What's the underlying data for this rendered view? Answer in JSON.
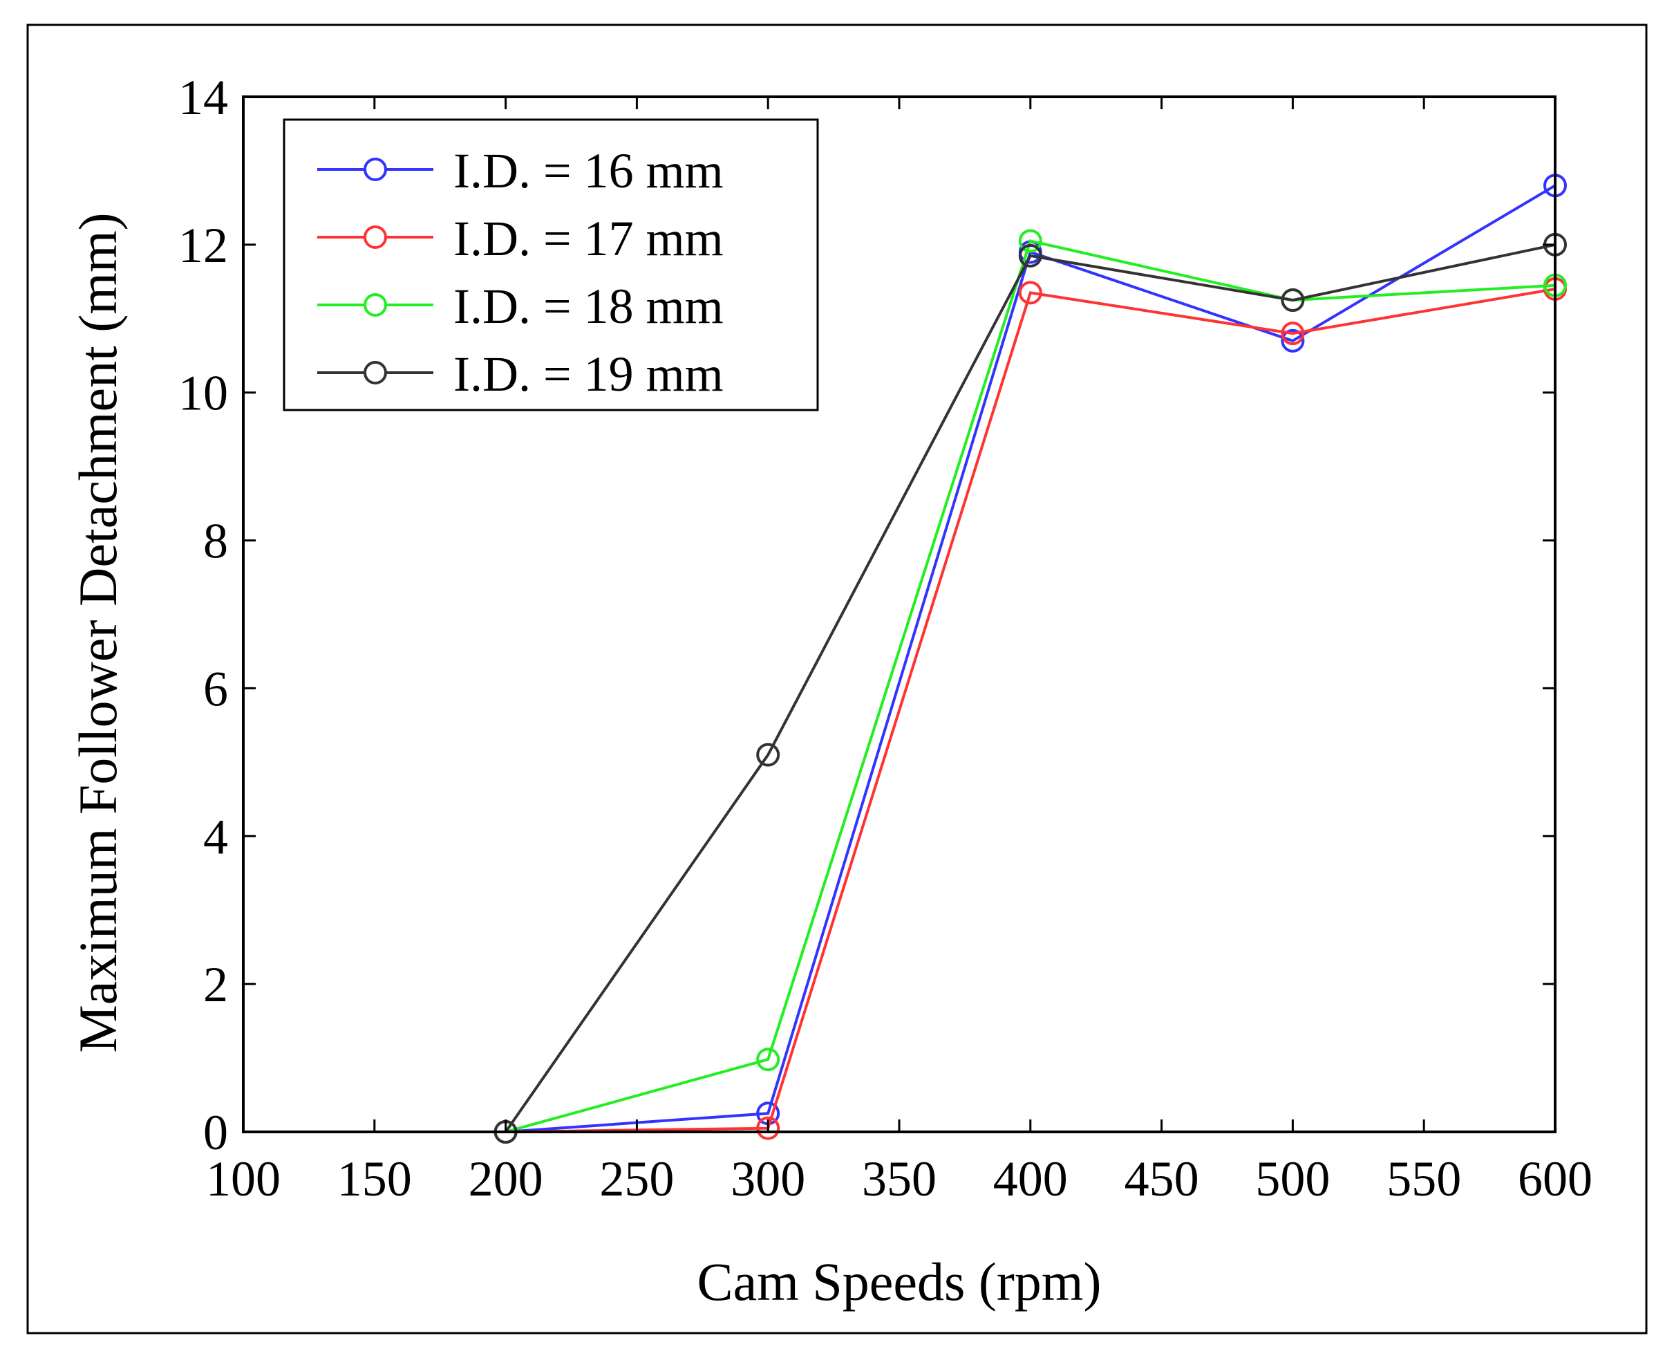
{
  "chart_data": {
    "type": "line",
    "title": "",
    "xlabel": "Cam Speeds (rpm)",
    "ylabel": "Maximum Follower Detachment (mm)",
    "xlim": [
      100,
      600
    ],
    "ylim": [
      0,
      14
    ],
    "xticks": [
      "100",
      "150",
      "200",
      "250",
      "300",
      "350",
      "400",
      "450",
      "500",
      "550",
      "600"
    ],
    "yticks": [
      "0",
      "2",
      "4",
      "6",
      "8",
      "10",
      "12",
      "14"
    ],
    "grid": false,
    "legend_position": "top-left",
    "x": [
      200,
      300,
      400,
      500,
      600
    ],
    "series": [
      {
        "name": "I.D. = 16 mm",
        "color": "#3333ff",
        "values": [
          0,
          0.25,
          11.9,
          10.7,
          12.8
        ]
      },
      {
        "name": "I.D. = 17 mm",
        "color": "#ff3333",
        "values": [
          0,
          0.05,
          11.35,
          10.8,
          11.4
        ]
      },
      {
        "name": "I.D. = 18 mm",
        "color": "#22ee22",
        "values": [
          0,
          0.98,
          12.05,
          11.25,
          11.45
        ]
      },
      {
        "name": "I.D. = 19 mm",
        "color": "#333333",
        "values": [
          0,
          5.1,
          11.85,
          11.25,
          12.0
        ]
      }
    ]
  }
}
